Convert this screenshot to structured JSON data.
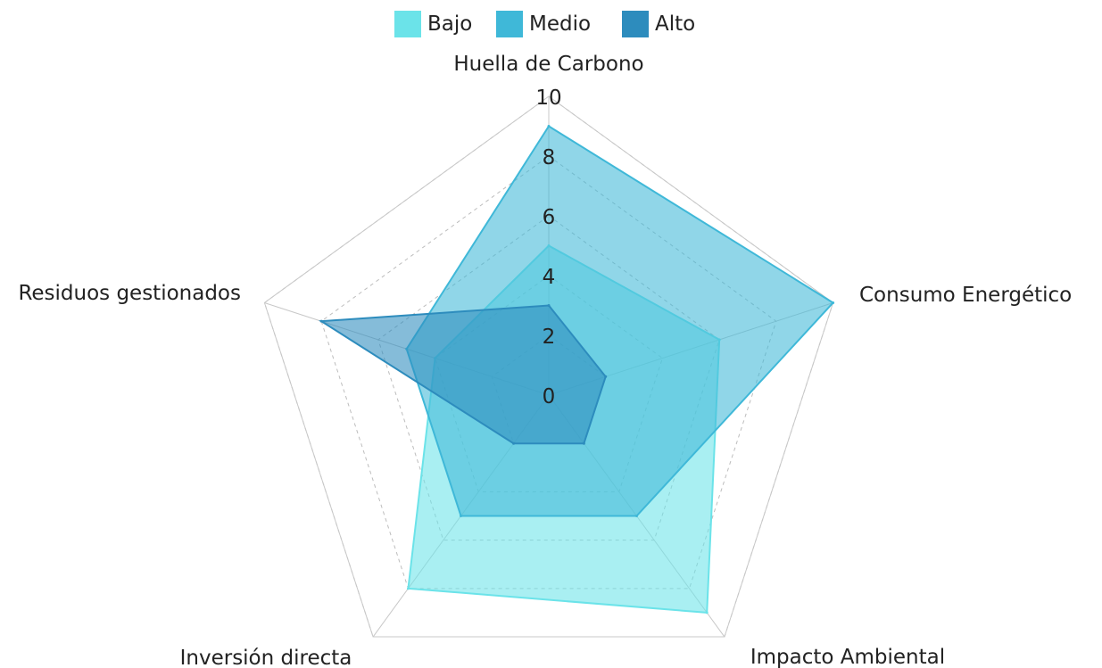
{
  "chart_data": {
    "type": "radar",
    "axes": [
      "Huella de Carbono",
      "Consumo Energético",
      "Impacto Ambiental",
      "Inversión directa",
      "Residuos gestionados"
    ],
    "rlim": [
      0,
      10
    ],
    "rticks": [
      "0",
      "2",
      "4",
      "6",
      "8",
      "10"
    ],
    "legend_position": "top-center",
    "grid": true,
    "series": [
      {
        "name": "Bajo",
        "color": "#6be3e9",
        "values": [
          5,
          6,
          9,
          8,
          4
        ]
      },
      {
        "name": "Medio",
        "color": "#3fb8d8",
        "values": [
          9,
          10,
          5,
          5,
          5
        ]
      },
      {
        "name": "Alto",
        "color": "#2d8cbd",
        "values": [
          3,
          2,
          2,
          2,
          8
        ]
      }
    ]
  }
}
